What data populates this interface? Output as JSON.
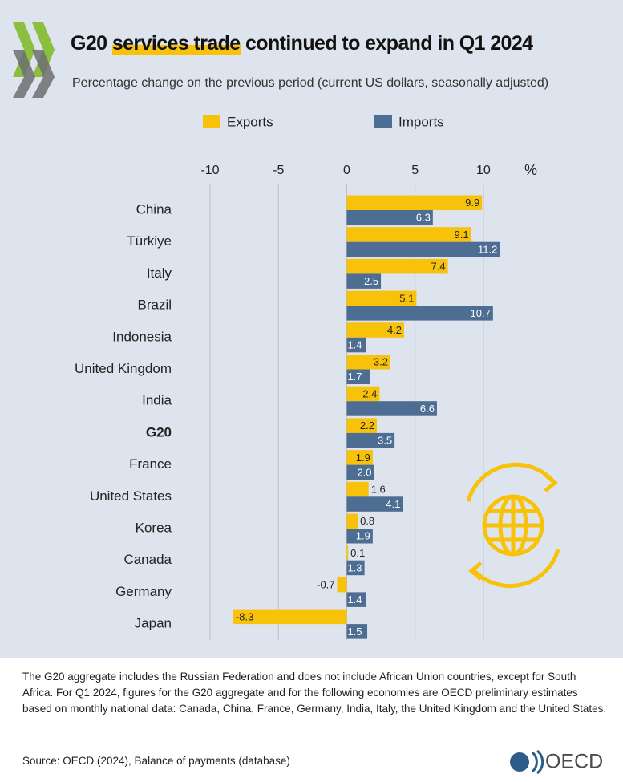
{
  "chart_data": {
    "type": "bar",
    "title": [
      "G20",
      "services trade",
      "continued to expand in Q1 2024"
    ],
    "subtitle": "Percentage change on the previous period (current US dollars, seasonally adjusted)",
    "x_unit": "%",
    "categories": [
      "China",
      "Türkiye",
      "Italy",
      "Brazil",
      "Indonesia",
      "United Kingdom",
      "India",
      "G20",
      "France",
      "United States",
      "Korea",
      "Canada",
      "Germany",
      "Japan"
    ],
    "bold_category_index": 7,
    "series": [
      {
        "name": "Exports",
        "color": "#f8c10a",
        "values": [
          9.9,
          9.1,
          7.4,
          5.1,
          4.2,
          3.2,
          2.4,
          2.2,
          1.9,
          1.6,
          0.8,
          0.1,
          -0.7,
          -8.3
        ]
      },
      {
        "name": "Imports",
        "color": "#4d6d92",
        "values": [
          6.3,
          11.2,
          2.5,
          10.7,
          1.4,
          1.7,
          6.6,
          3.5,
          2.0,
          4.1,
          1.9,
          1.3,
          1.4,
          1.5
        ],
        "value_labels": [
          "6.3",
          "11.2",
          "2.5",
          "10.7",
          "1.4",
          "1.7",
          "6.6",
          "3.5",
          "2.0",
          "4.1",
          "1.9",
          "1.3",
          "1.4",
          "1.5"
        ]
      }
    ],
    "xlim": [
      -10,
      12
    ],
    "xticks": [
      -10,
      -5,
      0,
      5,
      10
    ],
    "grid": true
  },
  "note": "The G20 aggregate includes the Russian Federation and does not include African Union countries, except for South Africa. For Q1 2024, figures for the G20 aggregate and for the following economies are OECD preliminary estimates based on monthly national data:  Canada, China, France, Germany, India, Italy, the United Kingdom and the United States.",
  "source": "Source: OECD (2024), Balance of payments (database)",
  "logo_text": "OECD"
}
